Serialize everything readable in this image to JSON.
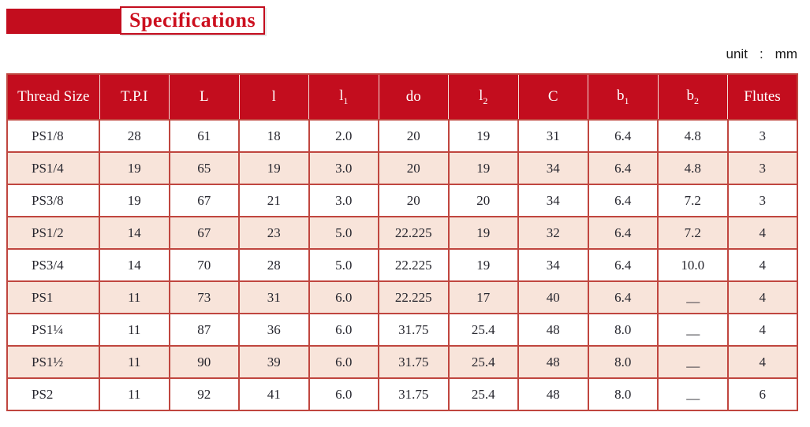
{
  "page": {
    "title": "Specifications",
    "unit_label": "unit",
    "unit_separator": ":",
    "unit_value": "mm"
  },
  "colors": {
    "header_red": "#c30d1e",
    "title_text_red": "#cc0f1e",
    "grid_border_red": "#c0463f",
    "row_pink": "#f8e4da",
    "row_white": "#ffffff",
    "body_text": "#26262e"
  },
  "table": {
    "columns": [
      {
        "label": "Thread Size",
        "sub": ""
      },
      {
        "label": "T.P.I",
        "sub": ""
      },
      {
        "label": "L",
        "sub": ""
      },
      {
        "label": "l",
        "sub": ""
      },
      {
        "label": "l",
        "sub": "1"
      },
      {
        "label": "do",
        "sub": ""
      },
      {
        "label": "l",
        "sub": "2"
      },
      {
        "label": "C",
        "sub": ""
      },
      {
        "label": "b",
        "sub": "1"
      },
      {
        "label": "b",
        "sub": "2"
      },
      {
        "label": "Flutes",
        "sub": ""
      }
    ],
    "rows": [
      [
        "PS1/8",
        "28",
        "61",
        "18",
        "2.0",
        "20",
        "19",
        "31",
        "6.4",
        "4.8",
        "3"
      ],
      [
        "PS1/4",
        "19",
        "65",
        "19",
        "3.0",
        "20",
        "19",
        "34",
        "6.4",
        "4.8",
        "3"
      ],
      [
        "PS3/8",
        "19",
        "67",
        "21",
        "3.0",
        "20",
        "20",
        "34",
        "6.4",
        "7.2",
        "3"
      ],
      [
        "PS1/2",
        "14",
        "67",
        "23",
        "5.0",
        "22.225",
        "19",
        "32",
        "6.4",
        "7.2",
        "4"
      ],
      [
        "PS3/4",
        "14",
        "70",
        "28",
        "5.0",
        "22.225",
        "19",
        "34",
        "6.4",
        "10.0",
        "4"
      ],
      [
        "PS1",
        "11",
        "73",
        "31",
        "6.0",
        "22.225",
        "17",
        "40",
        "6.4",
        "—",
        "4"
      ],
      [
        "PS1¼",
        "11",
        "87",
        "36",
        "6.0",
        "31.75",
        "25.4",
        "48",
        "8.0",
        "—",
        "4"
      ],
      [
        "PS1½",
        "11",
        "90",
        "39",
        "6.0",
        "31.75",
        "25.4",
        "48",
        "8.0",
        "—",
        "4"
      ],
      [
        "PS2",
        "11",
        "92",
        "41",
        "6.0",
        "31.75",
        "25.4",
        "48",
        "8.0",
        "—",
        "6"
      ]
    ]
  }
}
